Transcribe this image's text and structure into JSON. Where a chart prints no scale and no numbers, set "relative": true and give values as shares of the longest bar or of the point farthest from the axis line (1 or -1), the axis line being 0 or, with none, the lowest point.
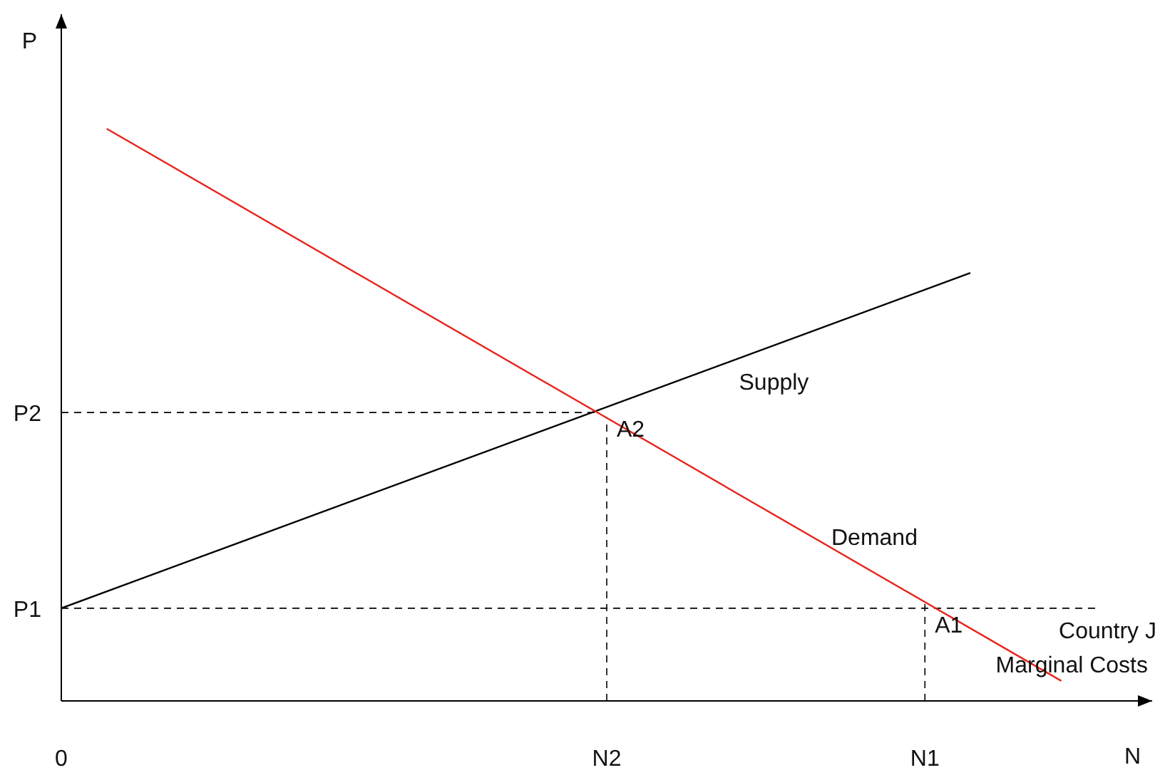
{
  "chart_data": {
    "type": "line",
    "relative": true,
    "xlabel": "N",
    "ylabel": "P",
    "categories": [
      "0",
      null,
      null,
      null,
      null,
      null,
      null,
      null,
      null,
      null,
      null,
      null,
      "N2",
      null,
      null,
      null,
      null,
      null,
      null,
      "N1",
      null,
      null,
      null,
      null,
      null
    ],
    "series": [
      {
        "name": "Supply",
        "color": "#000000",
        "values": [
          0.162,
          null,
          null,
          null,
          null,
          null,
          null,
          null,
          null,
          null,
          null,
          null,
          null,
          null,
          null,
          null,
          null,
          null,
          null,
          null,
          0.748,
          null,
          null,
          null,
          null
        ]
      },
      {
        "name": "Demand",
        "color": "#e8231c",
        "values": [
          null,
          1.0,
          null,
          null,
          null,
          null,
          null,
          null,
          null,
          null,
          null,
          null,
          null,
          null,
          null,
          null,
          null,
          null,
          null,
          null,
          null,
          null,
          0.035,
          null,
          null
        ]
      }
    ],
    "ref_lines": [
      {
        "axis": "y",
        "value": 0.162,
        "line_style": "dashed",
        "color": "#000000",
        "label": "P1"
      },
      {
        "axis": "y",
        "value": 0.504,
        "line_style": "dashed",
        "color": "#000000",
        "label": "P2"
      },
      {
        "axis": "x",
        "value": "N2",
        "line_style": "dashed",
        "color": "#000000"
      },
      {
        "axis": "x",
        "value": "N1",
        "line_style": "dashed",
        "color": "#000000"
      }
    ],
    "annotations": [
      "Country J Marginal Costs",
      {
        "text": "A2",
        "x": "N2",
        "y": 0.504
      },
      {
        "text": "A1",
        "x": "N1",
        "y": 0.162
      }
    ],
    "grid": false,
    "marker": "none",
    "line_style": "solid"
  }
}
